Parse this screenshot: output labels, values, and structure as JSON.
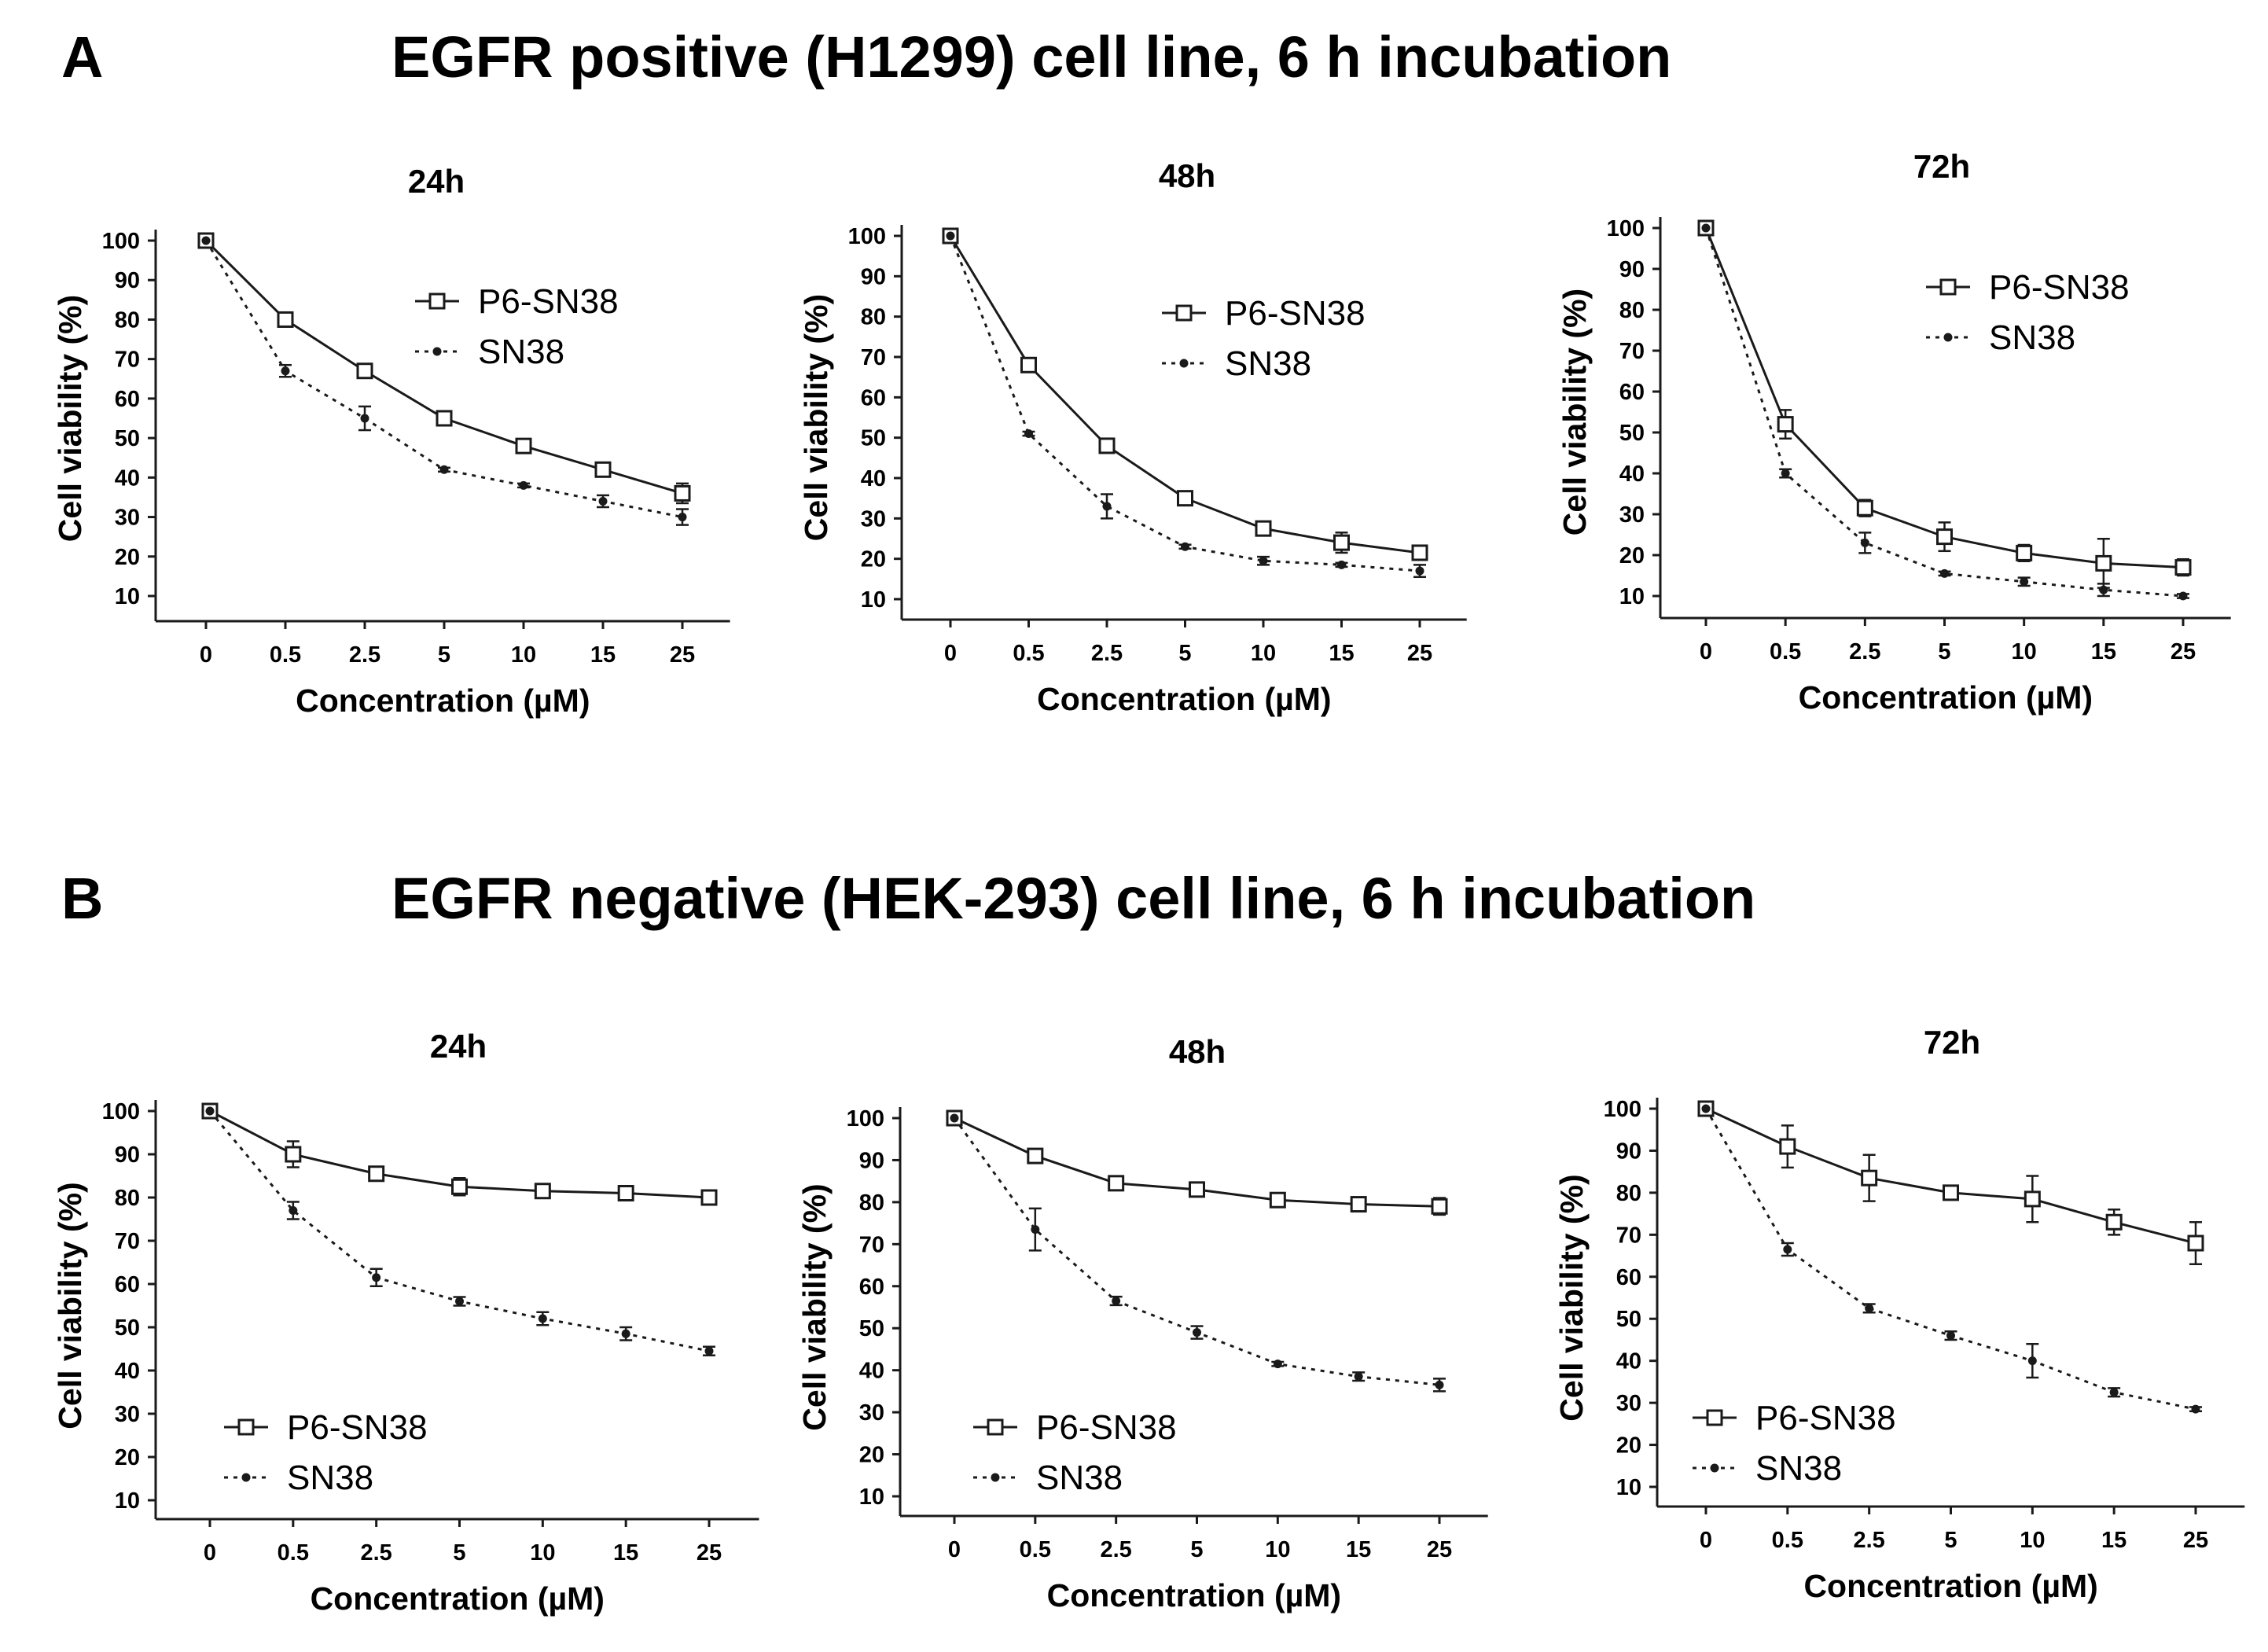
{
  "panels": [
    {
      "letter": "A",
      "title": "EGFR positive (H1299) cell line, 6 h incubation"
    },
    {
      "letter": "B",
      "title": "EGFR negative (HEK-293) cell line, 6 h incubation"
    }
  ],
  "colors": {
    "line": "#1a1a1a",
    "background": "#ffffff"
  },
  "chart_data": [
    {
      "type": "line",
      "panel": "A",
      "title": "24h",
      "xlabel": "Concentration (µM)",
      "ylabel": "Cell viability (%)",
      "categories": [
        "0",
        "0.5",
        "2.5",
        "5",
        "10",
        "15",
        "25"
      ],
      "yticks": [
        "10",
        "20",
        "30",
        "40",
        "50",
        "60",
        "70",
        "80",
        "90",
        "100"
      ],
      "ylim": [
        10,
        100
      ],
      "legend_position": "top-right",
      "series": [
        {
          "name": "P6-SN38",
          "style": "solid-open-square",
          "values": [
            100,
            80,
            67,
            55,
            48,
            42,
            36
          ],
          "errors": [
            0,
            1.5,
            1,
            1.5,
            1.5,
            1,
            2.5
          ]
        },
        {
          "name": "SN38",
          "style": "dotted-filled-circle",
          "values": [
            100,
            67,
            55,
            42,
            38,
            34,
            30
          ],
          "errors": [
            0,
            1.5,
            3,
            0.5,
            0.5,
            1.5,
            2
          ]
        }
      ]
    },
    {
      "type": "line",
      "panel": "A",
      "title": "48h",
      "xlabel": "Concentration (µM)",
      "ylabel": "Cell viability (%)",
      "categories": [
        "0",
        "0.5",
        "2.5",
        "5",
        "10",
        "15",
        "25"
      ],
      "yticks": [
        "10",
        "20",
        "30",
        "40",
        "50",
        "60",
        "70",
        "80",
        "90",
        "100"
      ],
      "ylim": [
        10,
        100
      ],
      "legend_position": "top-right",
      "series": [
        {
          "name": "P6-SN38",
          "style": "solid-open-square",
          "values": [
            100,
            68,
            48,
            35,
            27.5,
            24,
            21.5
          ],
          "errors": [
            0,
            1.5,
            0.5,
            1,
            1,
            2.5,
            1.5
          ]
        },
        {
          "name": "SN38",
          "style": "dotted-filled-circle",
          "values": [
            100,
            51,
            33,
            23,
            19.5,
            18.5,
            17
          ],
          "errors": [
            0,
            0.5,
            3,
            0.5,
            1,
            0.5,
            1.5
          ]
        }
      ]
    },
    {
      "type": "line",
      "panel": "A",
      "title": "72h",
      "xlabel": "Concentration (µM)",
      "ylabel": "Cell viability (%)",
      "categories": [
        "0",
        "0.5",
        "2.5",
        "5",
        "10",
        "15",
        "25"
      ],
      "yticks": [
        "10",
        "20",
        "30",
        "40",
        "50",
        "60",
        "70",
        "80",
        "90",
        "100"
      ],
      "ylim": [
        10,
        100
      ],
      "legend_position": "top-right",
      "series": [
        {
          "name": "P6-SN38",
          "style": "solid-open-square",
          "values": [
            100,
            52,
            31.5,
            24.5,
            20.5,
            18,
            17
          ],
          "errors": [
            0,
            3.5,
            2,
            3.5,
            2,
            6,
            2
          ]
        },
        {
          "name": "SN38",
          "style": "dotted-filled-circle",
          "values": [
            100,
            40,
            23,
            15.5,
            13.5,
            11.5,
            10
          ],
          "errors": [
            0,
            1,
            2.5,
            0.5,
            1,
            1.5,
            0.5
          ]
        }
      ]
    },
    {
      "type": "line",
      "panel": "B",
      "title": "24h",
      "xlabel": "Concentration (µM)",
      "ylabel": "Cell viability (%)",
      "categories": [
        "0",
        "0.5",
        "2.5",
        "5",
        "10",
        "15",
        "25"
      ],
      "yticks": [
        "10",
        "20",
        "30",
        "40",
        "50",
        "60",
        "70",
        "80",
        "90",
        "100"
      ],
      "ylim": [
        10,
        100
      ],
      "legend_position": "bottom-left",
      "series": [
        {
          "name": "P6-SN38",
          "style": "solid-open-square",
          "values": [
            100,
            90,
            85.5,
            82.5,
            81.5,
            81,
            80
          ],
          "errors": [
            0,
            3,
            1.5,
            2,
            1,
            0.5,
            0.5
          ]
        },
        {
          "name": "SN38",
          "style": "dotted-filled-circle",
          "values": [
            100,
            77,
            61.5,
            56,
            52,
            48.5,
            44.5
          ],
          "errors": [
            0,
            2,
            2,
            1,
            1.5,
            1.5,
            1
          ]
        }
      ]
    },
    {
      "type": "line",
      "panel": "B",
      "title": "48h",
      "xlabel": "Concentration (µM)",
      "ylabel": "Cell viability (%)",
      "categories": [
        "0",
        "0.5",
        "2.5",
        "5",
        "10",
        "15",
        "25"
      ],
      "yticks": [
        "10",
        "20",
        "30",
        "40",
        "50",
        "60",
        "70",
        "80",
        "90",
        "100"
      ],
      "ylim": [
        10,
        100
      ],
      "legend_position": "bottom-left",
      "series": [
        {
          "name": "P6-SN38",
          "style": "solid-open-square",
          "values": [
            100,
            91,
            84.5,
            83,
            80.5,
            79.5,
            79
          ],
          "errors": [
            0,
            1.5,
            1,
            1,
            1.5,
            1,
            2
          ]
        },
        {
          "name": "SN38",
          "style": "dotted-filled-circle",
          "values": [
            100,
            73.5,
            56.5,
            49,
            41.5,
            38.5,
            36.5
          ],
          "errors": [
            0,
            5,
            1,
            1.5,
            0.5,
            1,
            1.5
          ]
        }
      ]
    },
    {
      "type": "line",
      "panel": "B",
      "title": "72h",
      "xlabel": "Concentration (µM)",
      "ylabel": "Cell viability (%)",
      "categories": [
        "0",
        "0.5",
        "2.5",
        "5",
        "10",
        "15",
        "25"
      ],
      "yticks": [
        "10",
        "20",
        "30",
        "40",
        "50",
        "60",
        "70",
        "80",
        "90",
        "100"
      ],
      "ylim": [
        10,
        100
      ],
      "legend_position": "bottom-left",
      "series": [
        {
          "name": "P6-SN38",
          "style": "solid-open-square",
          "values": [
            100,
            91,
            83.5,
            80,
            78.5,
            73,
            68
          ],
          "errors": [
            0,
            5,
            5.5,
            1,
            5.5,
            3,
            5
          ]
        },
        {
          "name": "SN38",
          "style": "dotted-filled-circle",
          "values": [
            100,
            66.5,
            52.5,
            46,
            40,
            32.5,
            28.5
          ],
          "errors": [
            0,
            1.5,
            1,
            1,
            4,
            1,
            0.5
          ]
        }
      ]
    }
  ]
}
